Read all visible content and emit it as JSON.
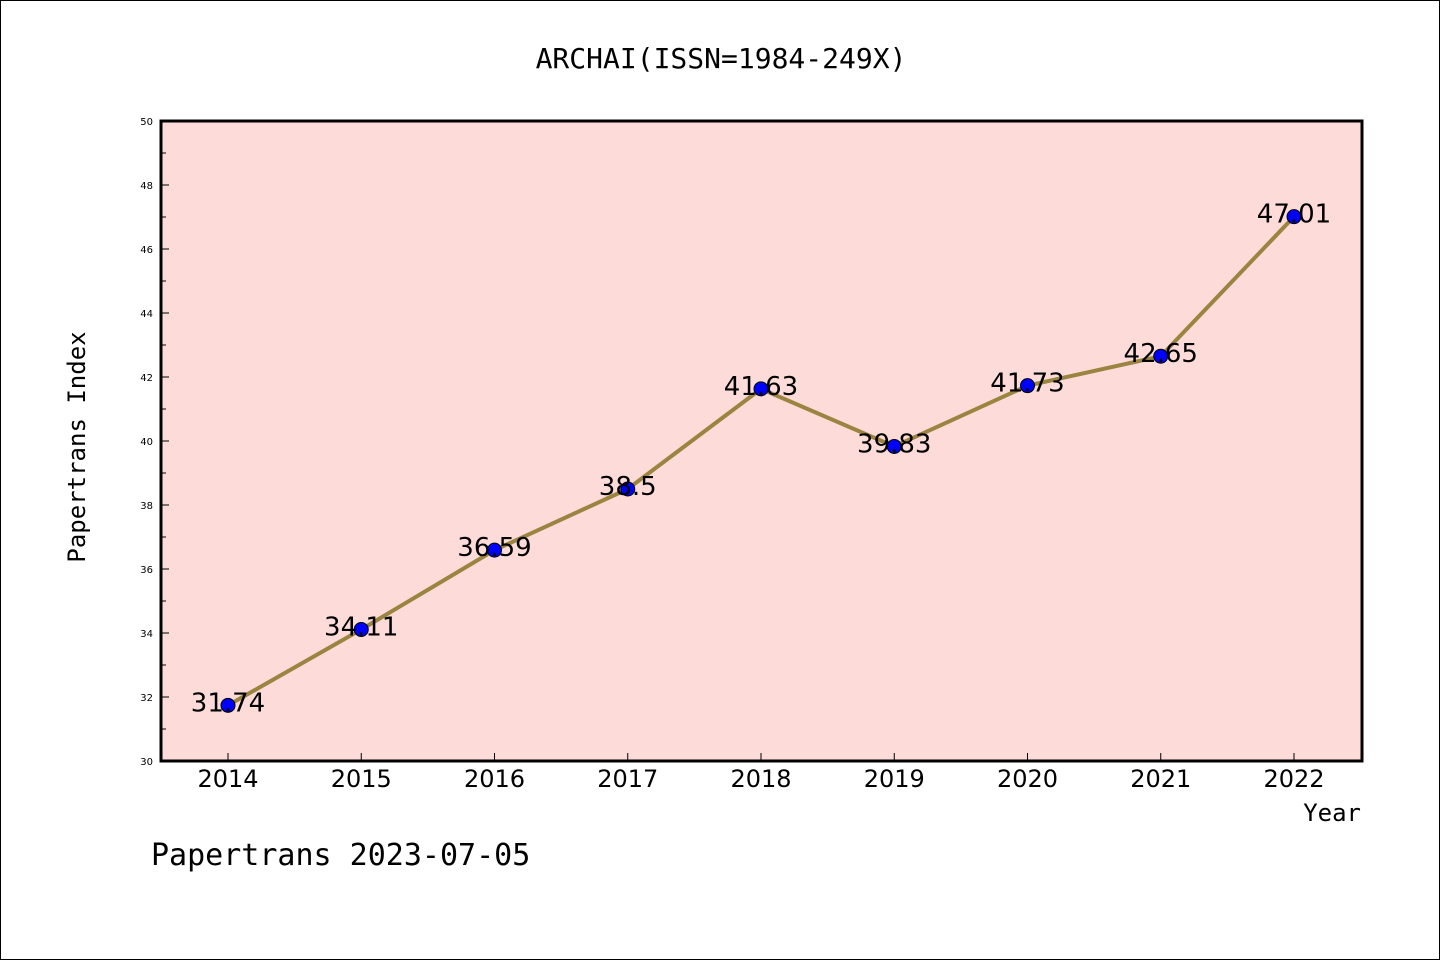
{
  "chart_data": {
    "type": "line",
    "title": "ARCHAI(ISSN=1984-249X)",
    "xlabel": "Year",
    "ylabel": "Papertrans Index",
    "categories": [
      "2014",
      "2015",
      "2016",
      "2017",
      "2018",
      "2019",
      "2020",
      "2021",
      "2022"
    ],
    "values": [
      31.74,
      34.11,
      36.59,
      38.5,
      41.63,
      39.83,
      41.73,
      42.65,
      47.01
    ],
    "value_labels": [
      "31.74",
      "34.11",
      "36.59",
      "38.5",
      "41.63",
      "39.83",
      "41.73",
      "42.65",
      "47.01"
    ],
    "ylim": [
      30,
      50
    ],
    "y_ticks": [
      30,
      32,
      34,
      36,
      38,
      40,
      42,
      44,
      46,
      48,
      50
    ],
    "grid": false,
    "legend": "none",
    "colors": {
      "line": "#9a8440",
      "marker": "#0000ff",
      "plot_background": "#fddbd9",
      "frame": "#000000"
    }
  },
  "footer": {
    "text": "Papertrans 2023-07-05"
  }
}
